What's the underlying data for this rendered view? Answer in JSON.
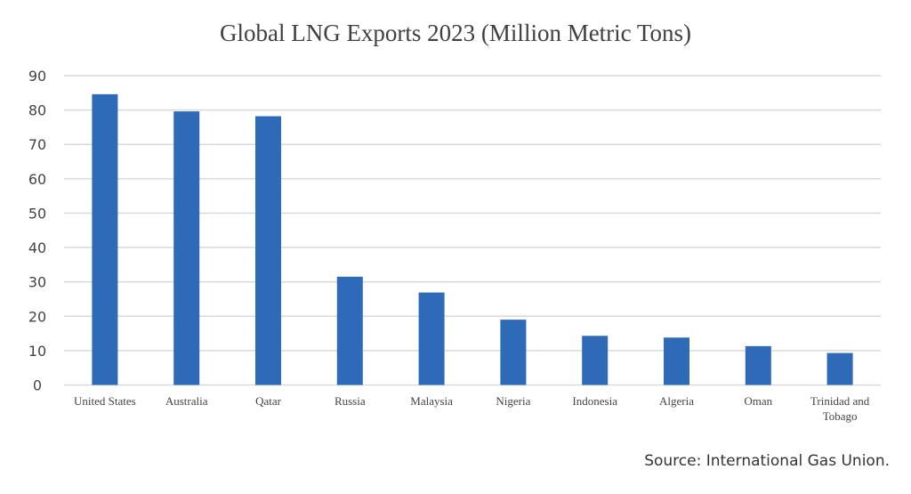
{
  "chart_data": {
    "type": "bar",
    "title": "Global LNG Exports 2023 (Million Metric Tons)",
    "categories": [
      "United States",
      "Australia",
      "Qatar",
      "Russia",
      "Malaysia",
      "Nigeria",
      "Indonesia",
      "Algeria",
      "Oman",
      "Trinidad and Tobago"
    ],
    "values": [
      84.6,
      79.6,
      78.2,
      31.5,
      26.9,
      19.0,
      14.3,
      13.8,
      11.3,
      9.3
    ],
    "xlabel": "",
    "ylabel": "",
    "ylim": [
      0,
      90
    ],
    "yticks": [
      0,
      10,
      20,
      30,
      40,
      50,
      60,
      70,
      80,
      90
    ],
    "grid": true,
    "bar_color": "#2E6AB8"
  },
  "source": "Source: International Gas Union."
}
